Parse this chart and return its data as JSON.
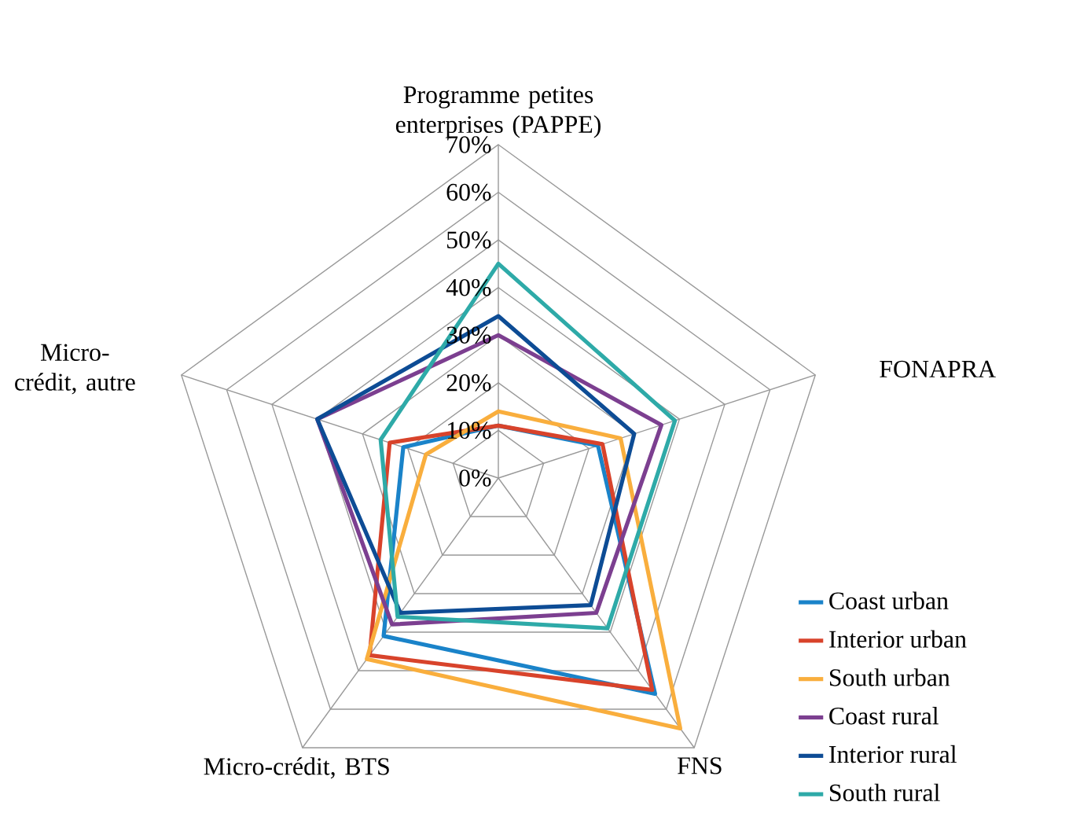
{
  "chart_data": {
    "type": "radar",
    "categories": [
      "Programme petites enterprises (PAPPE)",
      "FONAPRA",
      "FNS",
      "Micro-crédit, BTS",
      "Micro-crédit, autre"
    ],
    "ylim": [
      0,
      70
    ],
    "yticks": [
      {
        "value": 0,
        "label": "0%"
      },
      {
        "value": 10,
        "label": "10%"
      },
      {
        "value": 20,
        "label": "20%"
      },
      {
        "value": 30,
        "label": "30%"
      },
      {
        "value": 40,
        "label": "40%"
      },
      {
        "value": 50,
        "label": "50%"
      },
      {
        "value": 60,
        "label": "60%"
      },
      {
        "value": 70,
        "label": "70%"
      }
    ],
    "grid": true,
    "legend": "bottom right",
    "series": [
      {
        "name": "Coast urban",
        "color": "#1a83c9",
        "values": [
          11,
          22,
          56,
          41,
          21
        ]
      },
      {
        "name": "Interior urban",
        "color": "#d8432b",
        "values": [
          11,
          23,
          55,
          46,
          24
        ]
      },
      {
        "name": "South urban",
        "color": "#f9ae3d",
        "values": [
          14,
          27,
          65,
          47,
          16
        ]
      },
      {
        "name": "Coast rural",
        "color": "#7c3f90",
        "values": [
          30,
          36,
          35,
          38,
          40
        ]
      },
      {
        "name": "Interior rural",
        "color": "#0d4c95",
        "values": [
          34,
          30,
          33,
          35,
          40
        ]
      },
      {
        "name": "South rural",
        "color": "#2eaaa8",
        "values": [
          45,
          39,
          39,
          36,
          26
        ]
      }
    ]
  }
}
